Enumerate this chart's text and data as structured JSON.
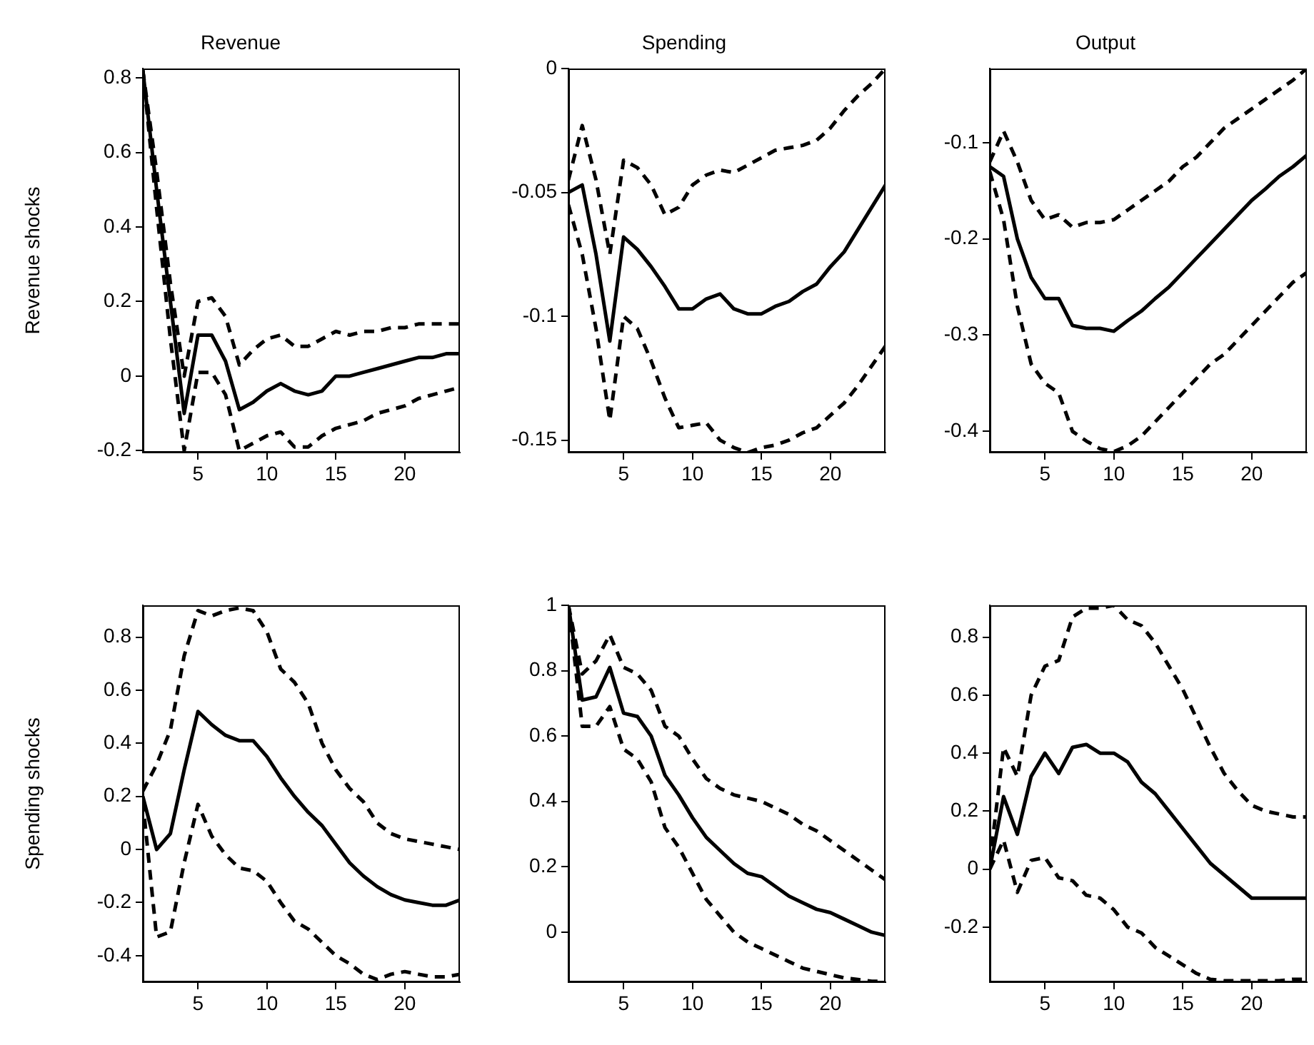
{
  "chart_data": [
    {
      "type": "line",
      "title": "Revenue",
      "ylabel": "Revenue shocks",
      "x": [
        1,
        2,
        3,
        4,
        5,
        6,
        7,
        8,
        9,
        10,
        11,
        12,
        13,
        14,
        15,
        16,
        17,
        18,
        19,
        20,
        21,
        22,
        23,
        24
      ],
      "xlim": [
        1,
        24
      ],
      "xticks": [
        5,
        10,
        15,
        20
      ],
      "ylim": [
        -0.205,
        0.825
      ],
      "yticks": [
        -0.2,
        0,
        0.2,
        0.4,
        0.6,
        0.8
      ],
      "grid": false,
      "legend": false,
      "marker": "none",
      "series": [
        {
          "color": "#000000",
          "line_style": "solid",
          "values": [
            0.82,
            0.5,
            0.2,
            -0.1,
            0.11,
            0.11,
            0.04,
            -0.09,
            -0.07,
            -0.04,
            -0.02,
            -0.04,
            -0.05,
            -0.04,
            0,
            0,
            0.01,
            0.02,
            0.03,
            0.04,
            0.05,
            0.05,
            0.06,
            0.06
          ]
        },
        {
          "color": "#000000",
          "line_style": "dashed",
          "values": [
            0.82,
            0.55,
            0.25,
            0.0,
            0.2,
            0.21,
            0.16,
            0.03,
            0.07,
            0.1,
            0.11,
            0.08,
            0.08,
            0.1,
            0.12,
            0.11,
            0.12,
            0.12,
            0.13,
            0.13,
            0.14,
            0.14,
            0.14,
            0.14
          ]
        },
        {
          "color": "#000000",
          "line_style": "dashed",
          "values": [
            0.82,
            0.45,
            0.1,
            -0.2,
            0.01,
            0.01,
            -0.05,
            -0.2,
            -0.18,
            -0.16,
            -0.15,
            -0.19,
            -0.19,
            -0.16,
            -0.14,
            -0.13,
            -0.12,
            -0.1,
            -0.09,
            -0.08,
            -0.06,
            -0.05,
            -0.04,
            -0.03
          ]
        }
      ]
    },
    {
      "type": "line",
      "title": "Spending",
      "x": [
        1,
        2,
        3,
        4,
        5,
        6,
        7,
        8,
        9,
        10,
        11,
        12,
        13,
        14,
        15,
        16,
        17,
        18,
        19,
        20,
        21,
        22,
        23,
        24
      ],
      "xlim": [
        1,
        24
      ],
      "xticks": [
        5,
        10,
        15,
        20
      ],
      "ylim": [
        -0.155,
        0
      ],
      "yticks": [
        -0.15,
        -0.1,
        -0.05,
        0
      ],
      "grid": false,
      "legend": false,
      "marker": "none",
      "series": [
        {
          "color": "#000000",
          "line_style": "solid",
          "values": [
            -0.05,
            -0.047,
            -0.075,
            -0.11,
            -0.068,
            -0.073,
            -0.08,
            -0.088,
            -0.097,
            -0.097,
            -0.093,
            -0.091,
            -0.097,
            -0.099,
            -0.099,
            -0.096,
            -0.094,
            -0.09,
            -0.087,
            -0.08,
            -0.074,
            -0.065,
            -0.056,
            -0.047
          ]
        },
        {
          "color": "#000000",
          "line_style": "dashed",
          "values": [
            -0.045,
            -0.023,
            -0.045,
            -0.075,
            -0.037,
            -0.04,
            -0.047,
            -0.059,
            -0.056,
            -0.047,
            -0.043,
            -0.041,
            -0.042,
            -0.039,
            -0.036,
            -0.033,
            -0.032,
            -0.031,
            -0.029,
            -0.024,
            -0.017,
            -0.011,
            -0.006,
            0
          ]
        },
        {
          "color": "#000000",
          "line_style": "dashed",
          "values": [
            -0.055,
            -0.075,
            -0.105,
            -0.142,
            -0.1,
            -0.105,
            -0.118,
            -0.133,
            -0.145,
            -0.144,
            -0.143,
            -0.15,
            -0.153,
            -0.155,
            -0.153,
            -0.152,
            -0.15,
            -0.147,
            -0.145,
            -0.14,
            -0.135,
            -0.128,
            -0.12,
            -0.112
          ]
        }
      ]
    },
    {
      "type": "line",
      "title": "Output",
      "x": [
        1,
        2,
        3,
        4,
        5,
        6,
        7,
        8,
        9,
        10,
        11,
        12,
        13,
        14,
        15,
        16,
        17,
        18,
        19,
        20,
        21,
        22,
        23,
        24
      ],
      "xlim": [
        1,
        24
      ],
      "xticks": [
        5,
        10,
        15,
        20
      ],
      "ylim": [
        -0.422,
        -0.023
      ],
      "yticks": [
        -0.4,
        -0.3,
        -0.2,
        -0.1
      ],
      "grid": false,
      "legend": false,
      "marker": "none",
      "series": [
        {
          "color": "#000000",
          "line_style": "solid",
          "values": [
            -0.125,
            -0.135,
            -0.2,
            -0.24,
            -0.262,
            -0.262,
            -0.29,
            -0.293,
            -0.293,
            -0.296,
            -0.285,
            -0.275,
            -0.262,
            -0.25,
            -0.235,
            -0.22,
            -0.205,
            -0.19,
            -0.175,
            -0.16,
            -0.148,
            -0.135,
            -0.125,
            -0.113
          ]
        },
        {
          "color": "#000000",
          "line_style": "dashed",
          "values": [
            -0.12,
            -0.088,
            -0.12,
            -0.16,
            -0.18,
            -0.175,
            -0.188,
            -0.183,
            -0.183,
            -0.18,
            -0.17,
            -0.16,
            -0.15,
            -0.14,
            -0.125,
            -0.115,
            -0.1,
            -0.085,
            -0.075,
            -0.065,
            -0.055,
            -0.045,
            -0.035,
            -0.023
          ]
        },
        {
          "color": "#000000",
          "line_style": "dashed",
          "values": [
            -0.13,
            -0.18,
            -0.27,
            -0.33,
            -0.35,
            -0.36,
            -0.4,
            -0.41,
            -0.418,
            -0.421,
            -0.415,
            -0.405,
            -0.39,
            -0.375,
            -0.36,
            -0.345,
            -0.33,
            -0.32,
            -0.305,
            -0.29,
            -0.275,
            -0.26,
            -0.245,
            -0.235
          ]
        }
      ]
    },
    {
      "type": "line",
      "ylabel": "Spending shocks",
      "x": [
        1,
        2,
        3,
        4,
        5,
        6,
        7,
        8,
        9,
        10,
        11,
        12,
        13,
        14,
        15,
        16,
        17,
        18,
        19,
        20,
        21,
        22,
        23,
        24
      ],
      "xlim": [
        1,
        24
      ],
      "xticks": [
        5,
        10,
        15,
        20
      ],
      "ylim": [
        -0.5,
        0.92
      ],
      "yticks": [
        -0.4,
        -0.2,
        0,
        0.2,
        0.4,
        0.6,
        0.8
      ],
      "grid": false,
      "legend": false,
      "marker": "none",
      "series": [
        {
          "color": "#000000",
          "line_style": "solid",
          "values": [
            0.2,
            0.0,
            0.06,
            0.3,
            0.52,
            0.47,
            0.43,
            0.41,
            0.41,
            0.35,
            0.27,
            0.2,
            0.14,
            0.09,
            0.02,
            -0.05,
            -0.1,
            -0.14,
            -0.17,
            -0.19,
            -0.2,
            -0.21,
            -0.21,
            -0.19
          ]
        },
        {
          "color": "#000000",
          "line_style": "dashed",
          "values": [
            0.22,
            0.32,
            0.45,
            0.73,
            0.9,
            0.88,
            0.9,
            0.91,
            0.9,
            0.82,
            0.68,
            0.63,
            0.55,
            0.4,
            0.3,
            0.23,
            0.18,
            0.1,
            0.06,
            0.04,
            0.03,
            0.02,
            0.01,
            0.0
          ]
        },
        {
          "color": "#000000",
          "line_style": "dashed",
          "values": [
            0.18,
            -0.33,
            -0.31,
            -0.05,
            0.17,
            0.05,
            -0.02,
            -0.07,
            -0.08,
            -0.12,
            -0.2,
            -0.27,
            -0.3,
            -0.35,
            -0.4,
            -0.43,
            -0.47,
            -0.49,
            -0.47,
            -0.46,
            -0.47,
            -0.48,
            -0.48,
            -0.47
          ]
        }
      ]
    },
    {
      "type": "line",
      "x": [
        1,
        2,
        3,
        4,
        5,
        6,
        7,
        8,
        9,
        10,
        11,
        12,
        13,
        14,
        15,
        16,
        17,
        18,
        19,
        20,
        21,
        22,
        23,
        24
      ],
      "xlim": [
        1,
        24
      ],
      "xticks": [
        5,
        10,
        15,
        20
      ],
      "ylim": [
        -0.153,
        1
      ],
      "yticks": [
        0,
        0.2,
        0.4,
        0.6,
        0.8,
        1
      ],
      "grid": false,
      "legend": false,
      "marker": "none",
      "series": [
        {
          "color": "#000000",
          "line_style": "solid",
          "values": [
            1.0,
            0.71,
            0.72,
            0.81,
            0.67,
            0.66,
            0.6,
            0.48,
            0.42,
            0.35,
            0.29,
            0.25,
            0.21,
            0.18,
            0.17,
            0.14,
            0.11,
            0.09,
            0.07,
            0.06,
            0.04,
            0.02,
            0.0,
            -0.01
          ]
        },
        {
          "color": "#000000",
          "line_style": "dashed",
          "values": [
            1.0,
            0.79,
            0.83,
            0.91,
            0.81,
            0.79,
            0.74,
            0.63,
            0.6,
            0.53,
            0.47,
            0.44,
            0.42,
            0.41,
            0.4,
            0.38,
            0.36,
            0.33,
            0.31,
            0.28,
            0.25,
            0.22,
            0.19,
            0.16
          ]
        },
        {
          "color": "#000000",
          "line_style": "dashed",
          "values": [
            1.0,
            0.63,
            0.63,
            0.69,
            0.56,
            0.53,
            0.46,
            0.32,
            0.26,
            0.18,
            0.1,
            0.05,
            0.0,
            -0.03,
            -0.05,
            -0.07,
            -0.09,
            -0.11,
            -0.12,
            -0.13,
            -0.14,
            -0.145,
            -0.15,
            -0.15
          ]
        }
      ]
    },
    {
      "type": "line",
      "x": [
        1,
        2,
        3,
        4,
        5,
        6,
        7,
        8,
        9,
        10,
        11,
        12,
        13,
        14,
        15,
        16,
        17,
        18,
        19,
        20,
        21,
        22,
        23,
        24
      ],
      "xlim": [
        1,
        24
      ],
      "xticks": [
        5,
        10,
        15,
        20
      ],
      "ylim": [
        -0.39,
        0.91
      ],
      "yticks": [
        -0.2,
        0,
        0.2,
        0.4,
        0.6,
        0.8
      ],
      "grid": false,
      "legend": false,
      "marker": "none",
      "series": [
        {
          "color": "#000000",
          "line_style": "solid",
          "values": [
            0.0,
            0.25,
            0.12,
            0.32,
            0.4,
            0.33,
            0.42,
            0.43,
            0.4,
            0.4,
            0.37,
            0.3,
            0.26,
            0.2,
            0.14,
            0.08,
            0.02,
            -0.02,
            -0.06,
            -0.1,
            -0.1,
            -0.1,
            -0.1,
            -0.1
          ]
        },
        {
          "color": "#000000",
          "line_style": "dashed",
          "values": [
            0.02,
            0.42,
            0.32,
            0.6,
            0.7,
            0.72,
            0.87,
            0.9,
            0.9,
            0.91,
            0.86,
            0.84,
            0.78,
            0.7,
            0.62,
            0.52,
            0.42,
            0.33,
            0.27,
            0.22,
            0.2,
            0.19,
            0.18,
            0.18
          ]
        },
        {
          "color": "#000000",
          "line_style": "dashed",
          "values": [
            0.0,
            0.1,
            -0.08,
            0.03,
            0.04,
            -0.03,
            -0.04,
            -0.09,
            -0.1,
            -0.14,
            -0.2,
            -0.22,
            -0.27,
            -0.3,
            -0.33,
            -0.36,
            -0.38,
            -0.385,
            -0.385,
            -0.385,
            -0.385,
            -0.385,
            -0.38,
            -0.38
          ]
        }
      ]
    }
  ]
}
